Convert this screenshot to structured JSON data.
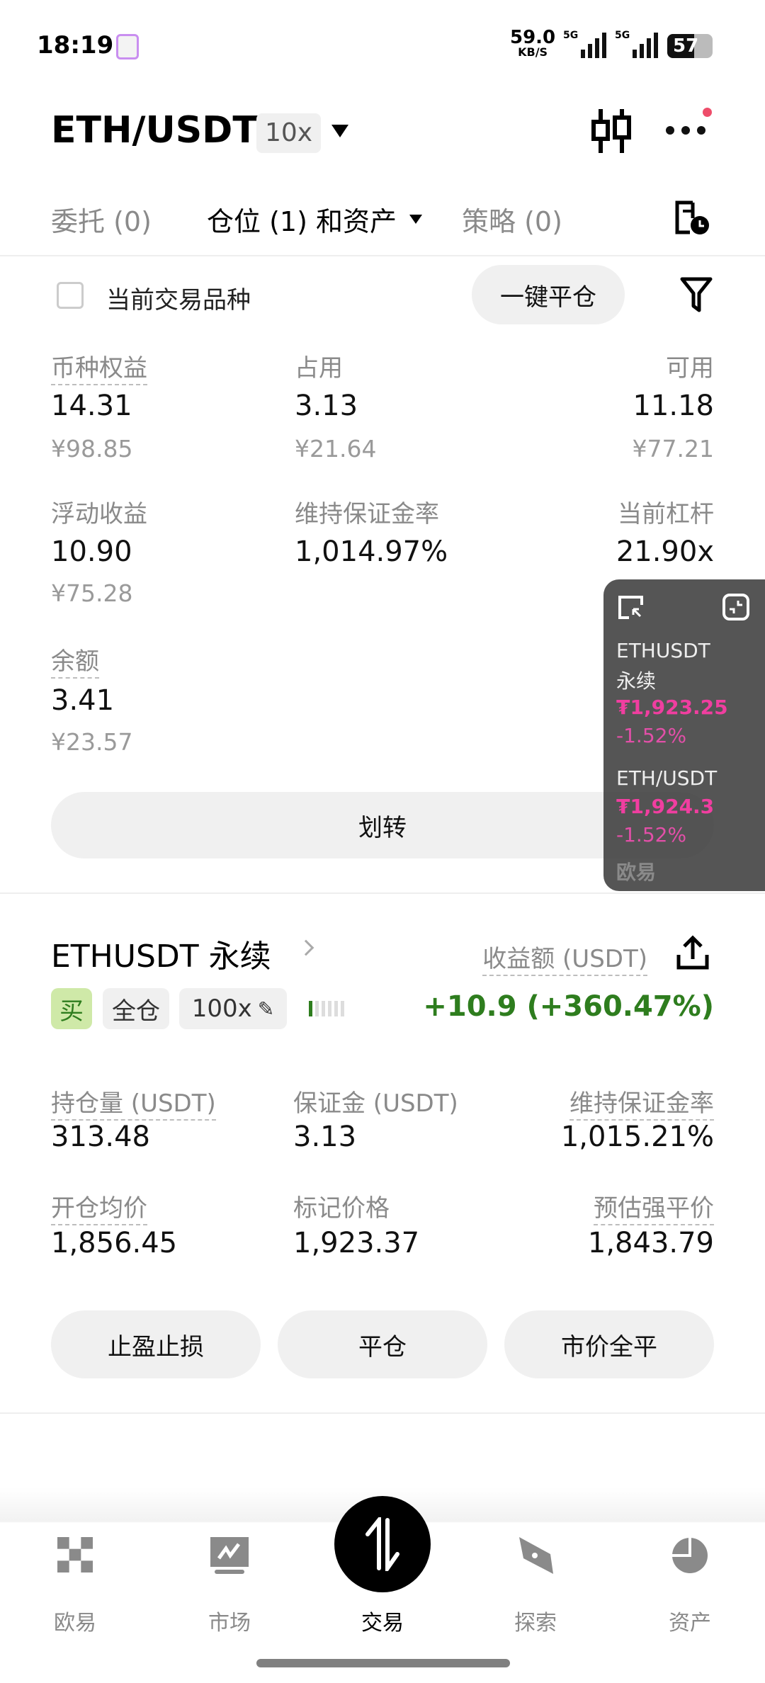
{
  "status_bar": {
    "time": "18:19",
    "net_speed": "59.0",
    "net_unit": "KB/S",
    "signal1": "5G",
    "signal2": "5G",
    "battery": "57"
  },
  "header": {
    "pair": "ETH/USDT",
    "leverage": "10x",
    "icons": [
      "candlestick-icon",
      "more-icon"
    ],
    "notification_dot_color": "#ee4d6a"
  },
  "tabs": [
    {
      "label": "委托 (0)"
    },
    {
      "label": "仓位 (1) 和资产"
    },
    {
      "label": "策略 (0)"
    }
  ],
  "filter": {
    "checkbox_label": "当前交易品种",
    "close_all": "一键平仓"
  },
  "assets": {
    "equity": {
      "label": "币种权益",
      "value": "14.31",
      "cny": "¥98.85"
    },
    "used": {
      "label": "占用",
      "value": "3.13",
      "cny": "¥21.64"
    },
    "available": {
      "label": "可用",
      "value": "11.18",
      "cny": "¥77.21"
    },
    "floating_pnl": {
      "label": "浮动收益",
      "value": "10.90",
      "cny": "¥75.28"
    },
    "maint_margin_ratio": {
      "label": "维持保证金率",
      "value": "1,014.97%"
    },
    "leverage": {
      "label": "当前杠杆",
      "value": "21.90x"
    },
    "balance": {
      "label": "余额",
      "value": "3.41",
      "cny": "¥23.57"
    },
    "transfer": "划转"
  },
  "overlay": {
    "items": [
      {
        "name": "ETHUSDT",
        "sub": "永续",
        "price": "₮1,923.25",
        "change": "-1.52%"
      },
      {
        "name": "ETH/USDT",
        "price": "₮1,924.3",
        "change": "-1.52%"
      }
    ],
    "watermark": "欧易",
    "accent": "#f03ea0"
  },
  "position": {
    "title": "ETHUSDT 永续",
    "pnl_label": "收益额 (USDT)",
    "side": "买",
    "margin_mode": "全仓",
    "leverage": "100x",
    "pnl": "+10.9 (+360.47%)",
    "pnl_color": "#2e7d1e",
    "risk_level": 1,
    "risk_max": 6,
    "fields": [
      {
        "label": "持仓量 (USDT)",
        "value": "313.48"
      },
      {
        "label": "保证金 (USDT)",
        "value": "3.13"
      },
      {
        "label": "维持保证金率",
        "value": "1,015.21%"
      },
      {
        "label": "开仓均价",
        "value": "1,856.45"
      },
      {
        "label": "标记价格",
        "value": "1,923.37"
      },
      {
        "label": "预估强平价",
        "value": "1,843.79"
      }
    ],
    "buttons": [
      "止盈止损",
      "平仓",
      "市价全平"
    ]
  },
  "nav": [
    {
      "label": "欧易",
      "icon": "okx-logo-icon"
    },
    {
      "label": "市场",
      "icon": "market-chart-icon"
    },
    {
      "label": "交易",
      "icon": "trade-arrows-icon",
      "active": true
    },
    {
      "label": "探索",
      "icon": "explore-compass-icon"
    },
    {
      "label": "资产",
      "icon": "assets-pie-icon"
    }
  ]
}
